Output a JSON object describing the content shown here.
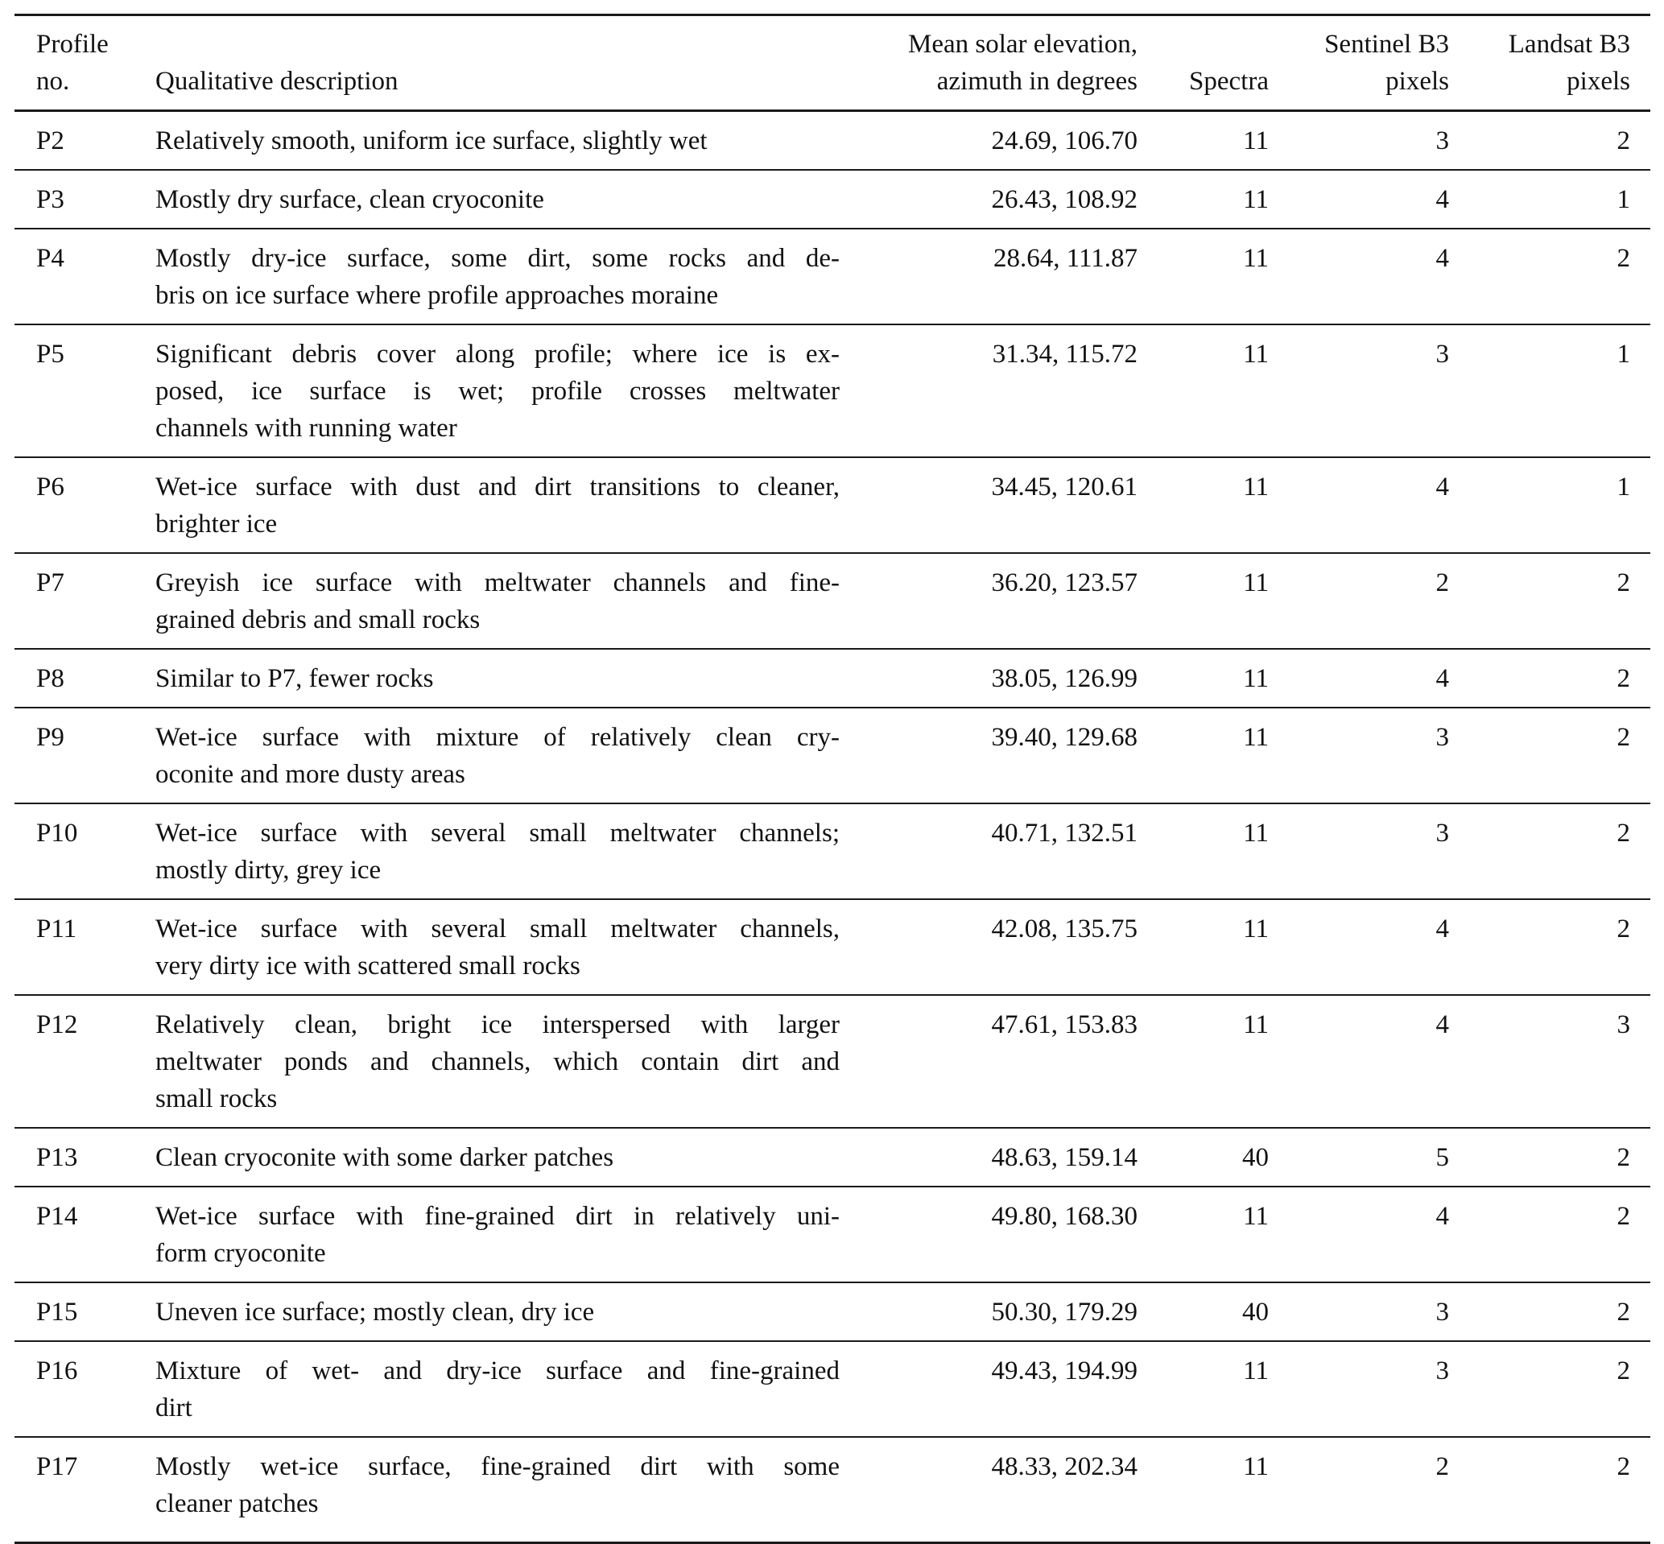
{
  "table": {
    "columns": [
      {
        "id": "profile",
        "header_lines": [
          "Profile",
          "no."
        ]
      },
      {
        "id": "description",
        "header_lines": [
          "Qualitative description"
        ]
      },
      {
        "id": "elevation_azimuth",
        "header_lines": [
          "Mean solar elevation,",
          "azimuth in degrees"
        ]
      },
      {
        "id": "spectra",
        "header_lines": [
          "Spectra"
        ]
      },
      {
        "id": "sentinel_pixels",
        "header_lines": [
          "Sentinel B3",
          "pixels"
        ]
      },
      {
        "id": "landsat_pixels",
        "header_lines": [
          "Landsat B3",
          "pixels"
        ]
      }
    ],
    "rows": [
      {
        "profile": "P2",
        "description_lines": [
          "Relatively smooth, uniform ice surface, slightly wet"
        ],
        "elevation_azimuth": "24.69, 106.70",
        "spectra": "11",
        "sentinel_pixels": "3",
        "landsat_pixels": "2"
      },
      {
        "profile": "P3",
        "description_lines": [
          "Mostly dry surface, clean cryoconite"
        ],
        "elevation_azimuth": "26.43, 108.92",
        "spectra": "11",
        "sentinel_pixels": "4",
        "landsat_pixels": "1"
      },
      {
        "profile": "P4",
        "description_lines": [
          "Mostly dry-ice surface, some dirt, some rocks and de-",
          "bris on ice surface where profile approaches moraine"
        ],
        "elevation_azimuth": "28.64, 111.87",
        "spectra": "11",
        "sentinel_pixels": "4",
        "landsat_pixels": "2"
      },
      {
        "profile": "P5",
        "description_lines": [
          "Significant debris cover along profile; where ice is ex-",
          "posed, ice surface is wet; profile crosses meltwater",
          "channels with running water"
        ],
        "elevation_azimuth": "31.34, 115.72",
        "spectra": "11",
        "sentinel_pixels": "3",
        "landsat_pixels": "1"
      },
      {
        "profile": "P6",
        "description_lines": [
          "Wet-ice surface with dust and dirt transitions to cleaner,",
          "brighter ice"
        ],
        "elevation_azimuth": "34.45, 120.61",
        "spectra": "11",
        "sentinel_pixels": "4",
        "landsat_pixels": "1"
      },
      {
        "profile": "P7",
        "description_lines": [
          "Greyish ice surface with meltwater channels and fine-",
          "grained debris and small rocks"
        ],
        "elevation_azimuth": "36.20, 123.57",
        "spectra": "11",
        "sentinel_pixels": "2",
        "landsat_pixels": "2"
      },
      {
        "profile": "P8",
        "description_lines": [
          "Similar to P7, fewer rocks"
        ],
        "elevation_azimuth": "38.05, 126.99",
        "spectra": "11",
        "sentinel_pixels": "4",
        "landsat_pixels": "2"
      },
      {
        "profile": "P9",
        "description_lines": [
          "Wet-ice surface with mixture of relatively clean cry-",
          "oconite and more dusty areas"
        ],
        "elevation_azimuth": "39.40, 129.68",
        "spectra": "11",
        "sentinel_pixels": "3",
        "landsat_pixels": "2"
      },
      {
        "profile": "P10",
        "description_lines": [
          "Wet-ice surface with several small meltwater channels;",
          "mostly dirty, grey ice"
        ],
        "elevation_azimuth": "40.71, 132.51",
        "spectra": "11",
        "sentinel_pixels": "3",
        "landsat_pixels": "2"
      },
      {
        "profile": "P11",
        "description_lines": [
          "Wet-ice surface with several small meltwater channels,",
          "very dirty ice with scattered small rocks"
        ],
        "elevation_azimuth": "42.08, 135.75",
        "spectra": "11",
        "sentinel_pixels": "4",
        "landsat_pixels": "2"
      },
      {
        "profile": "P12",
        "description_lines": [
          "Relatively clean, bright ice interspersed with larger",
          "meltwater ponds and channels, which contain dirt and",
          "small rocks"
        ],
        "elevation_azimuth": "47.61, 153.83",
        "spectra": "11",
        "sentinel_pixels": "4",
        "landsat_pixels": "3"
      },
      {
        "profile": "P13",
        "description_lines": [
          "Clean cryoconite with some darker patches"
        ],
        "elevation_azimuth": "48.63, 159.14",
        "spectra": "40",
        "sentinel_pixels": "5",
        "landsat_pixels": "2"
      },
      {
        "profile": "P14",
        "description_lines": [
          "Wet-ice surface with fine-grained dirt in relatively uni-",
          "form cryoconite"
        ],
        "elevation_azimuth": "49.80, 168.30",
        "spectra": "11",
        "sentinel_pixels": "4",
        "landsat_pixels": "2"
      },
      {
        "profile": "P15",
        "description_lines": [
          "Uneven ice surface; mostly clean, dry ice"
        ],
        "elevation_azimuth": "50.30, 179.29",
        "spectra": "40",
        "sentinel_pixels": "3",
        "landsat_pixels": "2"
      },
      {
        "profile": "P16",
        "description_lines": [
          "Mixture of wet- and dry-ice surface and fine-grained",
          "dirt"
        ],
        "elevation_azimuth": "49.43, 194.99",
        "spectra": "11",
        "sentinel_pixels": "3",
        "landsat_pixels": "2"
      },
      {
        "profile": "P17",
        "description_lines": [
          "Mostly wet-ice surface, fine-grained dirt with some",
          "cleaner patches"
        ],
        "elevation_azimuth": "48.33, 202.34",
        "spectra": "11",
        "sentinel_pixels": "2",
        "landsat_pixels": "2"
      }
    ]
  }
}
